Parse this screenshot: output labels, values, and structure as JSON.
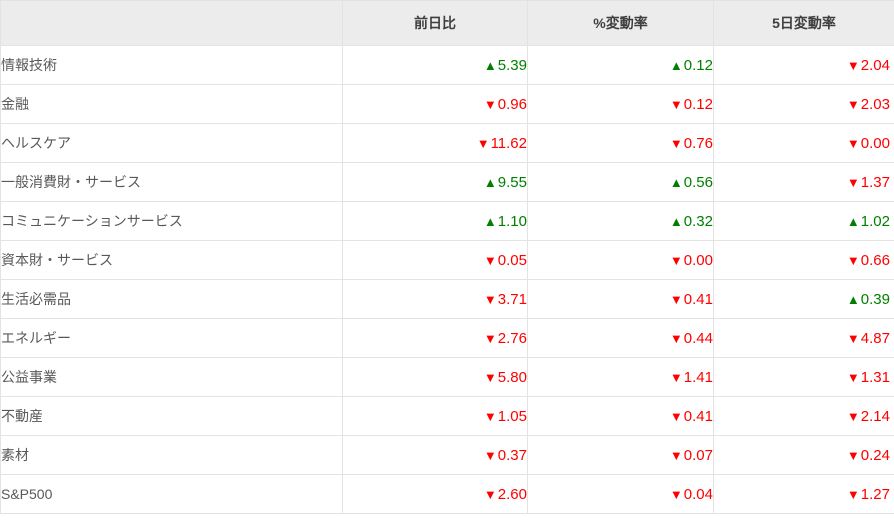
{
  "colors": {
    "up": "#008000",
    "down": "#ff0000",
    "header_bg": "#ececec",
    "border": "#e3e3e3",
    "label_text": "#595959",
    "header_text": "#3f3f3f"
  },
  "icons": {
    "up": "▲",
    "down": "▼"
  },
  "table": {
    "headers": [
      "",
      "前日比",
      "%変動率",
      "5日変動率"
    ],
    "rows": [
      {
        "label": "情報技術",
        "values": [
          {
            "dir": "up",
            "value": "5.39"
          },
          {
            "dir": "up",
            "value": "0.12"
          },
          {
            "dir": "down",
            "value": "2.04"
          }
        ]
      },
      {
        "label": "金融",
        "values": [
          {
            "dir": "down",
            "value": "0.96"
          },
          {
            "dir": "down",
            "value": "0.12"
          },
          {
            "dir": "down",
            "value": "2.03"
          }
        ]
      },
      {
        "label": "ヘルスケア",
        "values": [
          {
            "dir": "down",
            "value": "11.62"
          },
          {
            "dir": "down",
            "value": "0.76"
          },
          {
            "dir": "down",
            "value": "0.00"
          }
        ]
      },
      {
        "label": "一般消費財・サービス",
        "values": [
          {
            "dir": "up",
            "value": "9.55"
          },
          {
            "dir": "up",
            "value": "0.56"
          },
          {
            "dir": "down",
            "value": "1.37"
          }
        ]
      },
      {
        "label": "コミュニケーションサービス",
        "values": [
          {
            "dir": "up",
            "value": "1.10"
          },
          {
            "dir": "up",
            "value": "0.32"
          },
          {
            "dir": "up",
            "value": "1.02"
          }
        ]
      },
      {
        "label": "資本財・サービス",
        "values": [
          {
            "dir": "down",
            "value": "0.05"
          },
          {
            "dir": "down",
            "value": "0.00"
          },
          {
            "dir": "down",
            "value": "0.66"
          }
        ]
      },
      {
        "label": "生活必需品",
        "values": [
          {
            "dir": "down",
            "value": "3.71"
          },
          {
            "dir": "down",
            "value": "0.41"
          },
          {
            "dir": "up",
            "value": "0.39"
          }
        ]
      },
      {
        "label": "エネルギー",
        "values": [
          {
            "dir": "down",
            "value": "2.76"
          },
          {
            "dir": "down",
            "value": "0.44"
          },
          {
            "dir": "down",
            "value": "4.87"
          }
        ]
      },
      {
        "label": "公益事業",
        "values": [
          {
            "dir": "down",
            "value": "5.80"
          },
          {
            "dir": "down",
            "value": "1.41"
          },
          {
            "dir": "down",
            "value": "1.31"
          }
        ]
      },
      {
        "label": "不動産",
        "values": [
          {
            "dir": "down",
            "value": "1.05"
          },
          {
            "dir": "down",
            "value": "0.41"
          },
          {
            "dir": "down",
            "value": "2.14"
          }
        ]
      },
      {
        "label": "素材",
        "values": [
          {
            "dir": "down",
            "value": "0.37"
          },
          {
            "dir": "down",
            "value": "0.07"
          },
          {
            "dir": "down",
            "value": "0.24"
          }
        ]
      },
      {
        "label": "S&P500",
        "values": [
          {
            "dir": "down",
            "value": "2.60"
          },
          {
            "dir": "down",
            "value": "0.04"
          },
          {
            "dir": "down",
            "value": "1.27"
          }
        ]
      }
    ]
  },
  "chart_data": {
    "type": "table",
    "columns": [
      "",
      "前日比",
      "%変動率",
      "5日変動率"
    ],
    "rows": [
      [
        "情報技術",
        "▲5.39",
        "▲0.12",
        "▼2.04"
      ],
      [
        "金融",
        "▼0.96",
        "▼0.12",
        "▼2.03"
      ],
      [
        "ヘルスケア",
        "▼11.62",
        "▼0.76",
        "▼0.00"
      ],
      [
        "一般消費財・サービス",
        "▲9.55",
        "▲0.56",
        "▼1.37"
      ],
      [
        "コミュニケーションサービス",
        "▲1.10",
        "▲0.32",
        "▲1.02"
      ],
      [
        "資本財・サービス",
        "▼0.05",
        "▼0.00",
        "▼0.66"
      ],
      [
        "生活必需品",
        "▼3.71",
        "▼0.41",
        "▲0.39"
      ],
      [
        "エネルギー",
        "▼2.76",
        "▼0.44",
        "▼4.87"
      ],
      [
        "公益事業",
        "▼5.80",
        "▼1.41",
        "▼1.31"
      ],
      [
        "不動産",
        "▼1.05",
        "▼0.41",
        "▼2.14"
      ],
      [
        "素材",
        "▼0.37",
        "▼0.07",
        "▼0.24"
      ],
      [
        "S&P500",
        "▼2.60",
        "▼0.04",
        "▼1.27"
      ]
    ],
    "legend": "▲ = rise (green), ▼ = decline (red)"
  }
}
